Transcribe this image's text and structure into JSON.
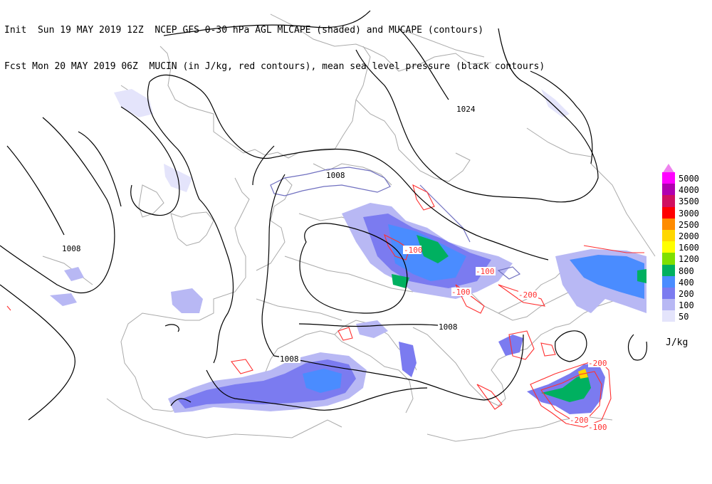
{
  "header": {
    "line1": "Init  Sun 19 MAY 2019 12Z  NCEP GFS 0-30 hPa AGL MLCAPE (shaded) and MUCAPE (contours)",
    "line2": "Fcst Mon 20 MAY 2019 06Z  MUCIN (in J/kg, red contours), mean sea level pressure (black contours)"
  },
  "legend": {
    "units": "J/kg",
    "top_arrow_color": "#ee82ee",
    "levels": [
      {
        "label": "5000",
        "color": "#ff00ff"
      },
      {
        "label": "4000",
        "color": "#b000b0"
      },
      {
        "label": "3500",
        "color": "#d01060"
      },
      {
        "label": "3000",
        "color": "#ff0000"
      },
      {
        "label": "2500",
        "color": "#ff8c00"
      },
      {
        "label": "2000",
        "color": "#ffd700"
      },
      {
        "label": "1600",
        "color": "#ffff00"
      },
      {
        "label": "1200",
        "color": "#7fe000"
      },
      {
        "label": "800",
        "color": "#00b060"
      },
      {
        "label": "400",
        "color": "#4a8cff"
      },
      {
        "label": "200",
        "color": "#7b7bf0"
      },
      {
        "label": "100",
        "color": "#b8b8f4"
      },
      {
        "label": "50",
        "color": "#e4e4fb"
      }
    ]
  },
  "pressure_labels": [
    "1024",
    "1008",
    "1008",
    "1008",
    "1008"
  ],
  "mucin_labels": [
    "-100",
    "-100",
    "-100",
    "-200",
    "-200",
    "-200",
    "-100"
  ],
  "colors": {
    "coast": "#aaaaaa",
    "pressure": "#000000",
    "mucin": "#ff3030",
    "mucape": "#7070c0"
  }
}
